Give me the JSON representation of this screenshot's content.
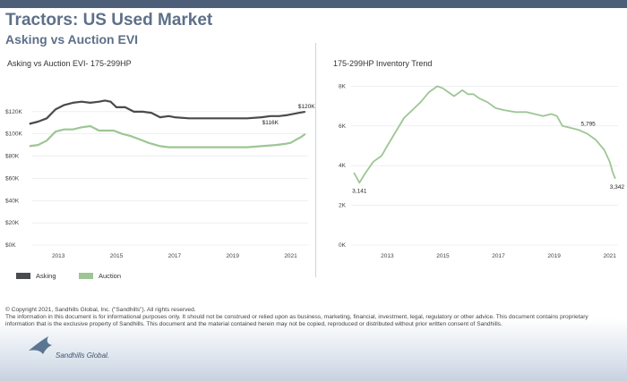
{
  "header": {
    "title": "Tractors:  US Used Market",
    "subtitle": "Asking vs Auction EVI"
  },
  "left_panel": {
    "title": "Asking vs Auction EVI- 175-299HP"
  },
  "right_panel": {
    "title": "175-299HP Inventory Trend"
  },
  "legend": {
    "asking": "Asking",
    "auction": "Auction"
  },
  "colors": {
    "asking": "#4a4b4e",
    "auction": "#9dc694",
    "header": "#5d7089"
  },
  "footer": {
    "line1": "© Copyright 2021, Sandhills Global, Inc. (\"Sandhills\"). All rights reserved.",
    "line2": "The information in this document is for informational purposes only.  It should not be construed or relied upon as business, marketing, financial, investment, legal, regulatory or other advice. This document contains proprietary",
    "line3": "information that is the exclusive property of Sandhills. This document and the material contained herein may not be copied, reproduced or distributed without prior written consent of Sandhills."
  },
  "logo": {
    "name": "Sandhills Global."
  },
  "chart_data": [
    {
      "type": "line",
      "title": "Asking vs Auction EVI- 175-299HP",
      "x_ticks": [
        "2013",
        "2015",
        "2017",
        "2019",
        "2021"
      ],
      "y_ticks": [
        "$0K",
        "$20K",
        "$40K",
        "$60K",
        "$80K",
        "$100K",
        "$120K"
      ],
      "ylim": [
        0,
        140000
      ],
      "xlim": [
        2012.1,
        2021.6
      ],
      "series": [
        {
          "name": "Asking",
          "x": [
            2012.0,
            2012.3,
            2012.6,
            2012.9,
            2013.2,
            2013.5,
            2013.8,
            2014.1,
            2014.4,
            2014.6,
            2014.8,
            2015.0,
            2015.3,
            2015.6,
            2015.9,
            2016.2,
            2016.5,
            2016.8,
            2017.0,
            2017.5,
            2018.0,
            2018.5,
            2019.0,
            2019.5,
            2020.0,
            2020.3,
            2020.6,
            2020.9,
            2021.1,
            2021.3,
            2021.5
          ],
          "values": [
            109000,
            111000,
            114000,
            122000,
            126000,
            128000,
            129000,
            128000,
            129000,
            130000,
            129000,
            124000,
            124000,
            120000,
            120000,
            119000,
            115000,
            116000,
            115000,
            114000,
            114000,
            114000,
            114000,
            114000,
            115000,
            116000,
            116000,
            117000,
            118000,
            119000,
            120000
          ]
        },
        {
          "name": "Auction",
          "x": [
            2012.0,
            2012.3,
            2012.6,
            2012.9,
            2013.2,
            2013.5,
            2013.8,
            2014.1,
            2014.4,
            2014.6,
            2014.9,
            2015.2,
            2015.5,
            2015.8,
            2016.1,
            2016.5,
            2016.8,
            2017.0,
            2017.5,
            2018.0,
            2018.5,
            2019.0,
            2019.5,
            2020.0,
            2020.5,
            2020.8,
            2021.0,
            2021.2,
            2021.35,
            2021.5
          ],
          "values": [
            89000,
            90000,
            94000,
            102000,
            104000,
            104000,
            106000,
            107000,
            103000,
            103000,
            103000,
            100000,
            98000,
            95000,
            92000,
            89000,
            88000,
            88000,
            88000,
            88000,
            88000,
            88000,
            88000,
            89000,
            90000,
            91000,
            92000,
            95000,
            97000,
            100000
          ]
        }
      ],
      "annotations": [
        {
          "text": "$120K",
          "x": 2021.5,
          "y": 120000
        },
        {
          "text": "$116K",
          "x": 2020.3,
          "y": 116000
        }
      ]
    },
    {
      "type": "line",
      "title": "175-299HP Inventory Trend",
      "x_ticks": [
        "2013",
        "2015",
        "2017",
        "2019",
        "2021"
      ],
      "y_ticks": [
        "0K",
        "2K",
        "4K",
        "6K",
        "8K"
      ],
      "ylim": [
        0,
        8200
      ],
      "xlim": [
        2011.7,
        2021.3
      ],
      "series": [
        {
          "name": "Inventory",
          "x": [
            2011.8,
            2012.0,
            2012.2,
            2012.5,
            2012.8,
            2013.0,
            2013.3,
            2013.6,
            2013.9,
            2014.2,
            2014.5,
            2014.8,
            2015.0,
            2015.2,
            2015.4,
            2015.7,
            2015.9,
            2016.1,
            2016.3,
            2016.6,
            2016.9,
            2017.2,
            2017.6,
            2018.0,
            2018.3,
            2018.6,
            2018.9,
            2019.1,
            2019.3,
            2019.6,
            2019.9,
            2020.2,
            2020.5,
            2020.8,
            2021.0,
            2021.1,
            2021.2
          ],
          "values": [
            3650,
            3141,
            3600,
            4200,
            4500,
            5000,
            5700,
            6400,
            6800,
            7200,
            7700,
            8000,
            7900,
            7700,
            7500,
            7800,
            7600,
            7600,
            7400,
            7200,
            6900,
            6800,
            6700,
            6700,
            6600,
            6500,
            6600,
            6500,
            6000,
            5900,
            5795,
            5600,
            5300,
            4800,
            4200,
            3700,
            3342
          ]
        }
      ],
      "annotations": [
        {
          "text": "3,141",
          "x": 2012.0,
          "y": 3141
        },
        {
          "text": "5,795",
          "x": 2019.9,
          "y": 5795
        },
        {
          "text": "3,342",
          "x": 2021.2,
          "y": 3342
        }
      ]
    }
  ]
}
